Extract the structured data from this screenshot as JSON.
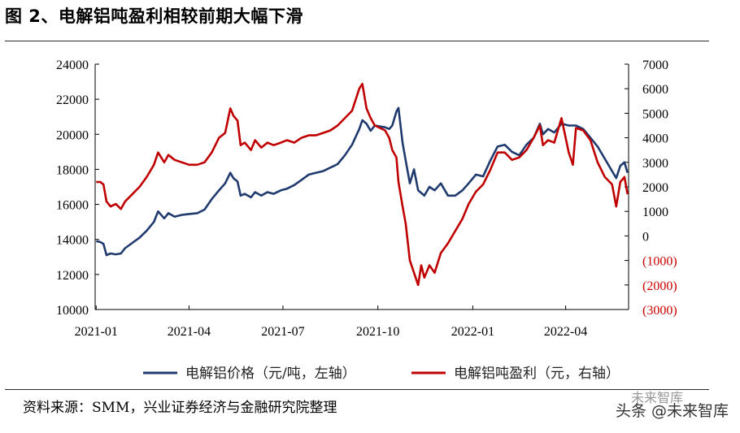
{
  "figure": {
    "title": "图 2、电解铝吨盈利相较前期大幅下滑",
    "source": "资料来源：SMM，兴业证券经济与金融研究院整理",
    "watermark": "头条 @未来智库",
    "watermark_logo": "未来智库"
  },
  "chart_data": {
    "type": "line",
    "x_tick_labels": [
      "2021-01",
      "2021-04",
      "2021-07",
      "2021-10",
      "2022-01",
      "2022-04"
    ],
    "x_range": [
      "2020-12-31",
      "2022-06-01"
    ],
    "left_axis": {
      "ticks": [
        "10000",
        "12000",
        "14000",
        "16000",
        "18000",
        "20000",
        "22000",
        "24000"
      ],
      "ylim": [
        10000,
        24000
      ]
    },
    "right_axis": {
      "ticks": [
        "(3000)",
        "(2000)",
        "(1000)",
        "0",
        "1000",
        "2000",
        "3000",
        "4000",
        "5000",
        "6000",
        "7000"
      ],
      "ylim": [
        -3000,
        7000
      ]
    },
    "series": [
      {
        "name": "电解铝价格（元/吨，左轴）",
        "axis": "left",
        "color": "#1f3a6e",
        "points": [
          [
            "2021-01-01",
            13900
          ],
          [
            "2021-01-05",
            13850
          ],
          [
            "2021-01-08",
            13750
          ],
          [
            "2021-01-11",
            13100
          ],
          [
            "2021-01-15",
            13200
          ],
          [
            "2021-01-20",
            13150
          ],
          [
            "2021-01-25",
            13200
          ],
          [
            "2021-01-29",
            13500
          ],
          [
            "2021-02-05",
            13800
          ],
          [
            "2021-02-12",
            14100
          ],
          [
            "2021-02-19",
            14500
          ],
          [
            "2021-02-26",
            15000
          ],
          [
            "2021-03-02",
            15600
          ],
          [
            "2021-03-08",
            15200
          ],
          [
            "2021-03-12",
            15500
          ],
          [
            "2021-03-18",
            15300
          ],
          [
            "2021-03-25",
            15400
          ],
          [
            "2021-04-01",
            15450
          ],
          [
            "2021-04-09",
            15500
          ],
          [
            "2021-04-16",
            15700
          ],
          [
            "2021-04-23",
            16300
          ],
          [
            "2021-04-30",
            16800
          ],
          [
            "2021-05-06",
            17200
          ],
          [
            "2021-05-11",
            17800
          ],
          [
            "2021-05-14",
            17500
          ],
          [
            "2021-05-18",
            17300
          ],
          [
            "2021-05-21",
            16500
          ],
          [
            "2021-05-25",
            16600
          ],
          [
            "2021-05-31",
            16400
          ],
          [
            "2021-06-04",
            16700
          ],
          [
            "2021-06-10",
            16500
          ],
          [
            "2021-06-16",
            16700
          ],
          [
            "2021-06-22",
            16600
          ],
          [
            "2021-06-29",
            16800
          ],
          [
            "2021-07-05",
            16900
          ],
          [
            "2021-07-12",
            17100
          ],
          [
            "2021-07-19",
            17400
          ],
          [
            "2021-07-26",
            17700
          ],
          [
            "2021-08-02",
            17800
          ],
          [
            "2021-08-09",
            17900
          ],
          [
            "2021-08-16",
            18100
          ],
          [
            "2021-08-23",
            18300
          ],
          [
            "2021-08-30",
            18800
          ],
          [
            "2021-09-06",
            19400
          ],
          [
            "2021-09-13",
            20300
          ],
          [
            "2021-09-16",
            20800
          ],
          [
            "2021-09-20",
            20600
          ],
          [
            "2021-09-24",
            20200
          ],
          [
            "2021-09-28",
            20500
          ],
          [
            "2021-10-08",
            20400
          ],
          [
            "2021-10-12",
            20300
          ],
          [
            "2021-10-15",
            20500
          ],
          [
            "2021-10-19",
            21300
          ],
          [
            "2021-10-21",
            21500
          ],
          [
            "2021-10-25",
            19500
          ],
          [
            "2021-10-28",
            18500
          ],
          [
            "2021-11-01",
            17200
          ],
          [
            "2021-11-05",
            18000
          ],
          [
            "2021-11-09",
            16800
          ],
          [
            "2021-11-15",
            16500
          ],
          [
            "2021-11-20",
            17000
          ],
          [
            "2021-11-25",
            16800
          ],
          [
            "2021-12-01",
            17200
          ],
          [
            "2021-12-08",
            16500
          ],
          [
            "2021-12-15",
            16500
          ],
          [
            "2021-12-22",
            16800
          ],
          [
            "2021-12-28",
            17200
          ],
          [
            "2022-01-04",
            17700
          ],
          [
            "2022-01-11",
            17600
          ],
          [
            "2022-01-18",
            18500
          ],
          [
            "2022-01-25",
            19300
          ],
          [
            "2022-02-01",
            19400
          ],
          [
            "2022-02-08",
            19000
          ],
          [
            "2022-02-15",
            18800
          ],
          [
            "2022-02-22",
            19400
          ],
          [
            "2022-03-01",
            19800
          ],
          [
            "2022-03-07",
            20600
          ],
          [
            "2022-03-10",
            20000
          ],
          [
            "2022-03-15",
            20300
          ],
          [
            "2022-03-21",
            20100
          ],
          [
            "2022-03-28",
            20600
          ],
          [
            "2022-04-04",
            20500
          ],
          [
            "2022-04-11",
            20500
          ],
          [
            "2022-04-18",
            20300
          ],
          [
            "2022-04-25",
            19800
          ],
          [
            "2022-05-02",
            19300
          ],
          [
            "2022-05-09",
            18600
          ],
          [
            "2022-05-16",
            17900
          ],
          [
            "2022-05-20",
            17500
          ],
          [
            "2022-05-24",
            18200
          ],
          [
            "2022-05-28",
            18400
          ],
          [
            "2022-05-31",
            17800
          ]
        ]
      },
      {
        "name": "电解铝吨盈利（元，右轴）",
        "axis": "right",
        "color": "#c00000",
        "points": [
          [
            "2021-01-01",
            2200
          ],
          [
            "2021-01-05",
            2200
          ],
          [
            "2021-01-08",
            2100
          ],
          [
            "2021-01-11",
            1400
          ],
          [
            "2021-01-15",
            1200
          ],
          [
            "2021-01-20",
            1300
          ],
          [
            "2021-01-25",
            1100
          ],
          [
            "2021-01-29",
            1400
          ],
          [
            "2021-02-05",
            1700
          ],
          [
            "2021-02-12",
            2000
          ],
          [
            "2021-02-19",
            2400
          ],
          [
            "2021-02-26",
            2900
          ],
          [
            "2021-03-02",
            3400
          ],
          [
            "2021-03-08",
            3000
          ],
          [
            "2021-03-12",
            3300
          ],
          [
            "2021-03-18",
            3100
          ],
          [
            "2021-03-25",
            3000
          ],
          [
            "2021-04-01",
            2900
          ],
          [
            "2021-04-09",
            2900
          ],
          [
            "2021-04-16",
            3000
          ],
          [
            "2021-04-23",
            3400
          ],
          [
            "2021-04-30",
            4000
          ],
          [
            "2021-05-06",
            4200
          ],
          [
            "2021-05-11",
            5200
          ],
          [
            "2021-05-14",
            4900
          ],
          [
            "2021-05-18",
            4700
          ],
          [
            "2021-05-21",
            3700
          ],
          [
            "2021-05-25",
            3800
          ],
          [
            "2021-05-31",
            3500
          ],
          [
            "2021-06-04",
            3900
          ],
          [
            "2021-06-10",
            3600
          ],
          [
            "2021-06-16",
            3800
          ],
          [
            "2021-06-22",
            3700
          ],
          [
            "2021-06-29",
            3800
          ],
          [
            "2021-07-05",
            3900
          ],
          [
            "2021-07-12",
            3800
          ],
          [
            "2021-07-19",
            4000
          ],
          [
            "2021-07-26",
            4100
          ],
          [
            "2021-08-02",
            4100
          ],
          [
            "2021-08-09",
            4200
          ],
          [
            "2021-08-16",
            4300
          ],
          [
            "2021-08-23",
            4500
          ],
          [
            "2021-08-30",
            4800
          ],
          [
            "2021-09-06",
            5100
          ],
          [
            "2021-09-13",
            6000
          ],
          [
            "2021-09-16",
            6200
          ],
          [
            "2021-09-20",
            5200
          ],
          [
            "2021-09-24",
            4800
          ],
          [
            "2021-09-28",
            4500
          ],
          [
            "2021-10-08",
            4300
          ],
          [
            "2021-10-12",
            4000
          ],
          [
            "2021-10-15",
            3500
          ],
          [
            "2021-10-19",
            3200
          ],
          [
            "2021-10-21",
            2200
          ],
          [
            "2021-10-25",
            1200
          ],
          [
            "2021-10-28",
            500
          ],
          [
            "2021-11-01",
            -1000
          ],
          [
            "2021-11-05",
            -1500
          ],
          [
            "2021-11-09",
            -2000
          ],
          [
            "2021-11-12",
            -1200
          ],
          [
            "2021-11-15",
            -1700
          ],
          [
            "2021-11-20",
            -1200
          ],
          [
            "2021-11-25",
            -1500
          ],
          [
            "2021-12-01",
            -700
          ],
          [
            "2021-12-08",
            -300
          ],
          [
            "2021-12-15",
            200
          ],
          [
            "2021-12-22",
            700
          ],
          [
            "2021-12-28",
            1300
          ],
          [
            "2022-01-04",
            1800
          ],
          [
            "2022-01-11",
            2100
          ],
          [
            "2022-01-18",
            2700
          ],
          [
            "2022-01-25",
            3400
          ],
          [
            "2022-02-01",
            3400
          ],
          [
            "2022-02-08",
            3100
          ],
          [
            "2022-02-15",
            3200
          ],
          [
            "2022-02-22",
            3500
          ],
          [
            "2022-03-01",
            4000
          ],
          [
            "2022-03-07",
            4500
          ],
          [
            "2022-03-10",
            3700
          ],
          [
            "2022-03-15",
            3900
          ],
          [
            "2022-03-21",
            3800
          ],
          [
            "2022-03-28",
            4800
          ],
          [
            "2022-04-04",
            3400
          ],
          [
            "2022-04-08",
            2900
          ],
          [
            "2022-04-11",
            4400
          ],
          [
            "2022-04-18",
            4300
          ],
          [
            "2022-04-25",
            3900
          ],
          [
            "2022-05-02",
            3000
          ],
          [
            "2022-05-09",
            2400
          ],
          [
            "2022-05-16",
            2100
          ],
          [
            "2022-05-20",
            1200
          ],
          [
            "2022-05-24",
            2200
          ],
          [
            "2022-05-28",
            2400
          ],
          [
            "2022-05-31",
            1700
          ]
        ]
      }
    ]
  }
}
